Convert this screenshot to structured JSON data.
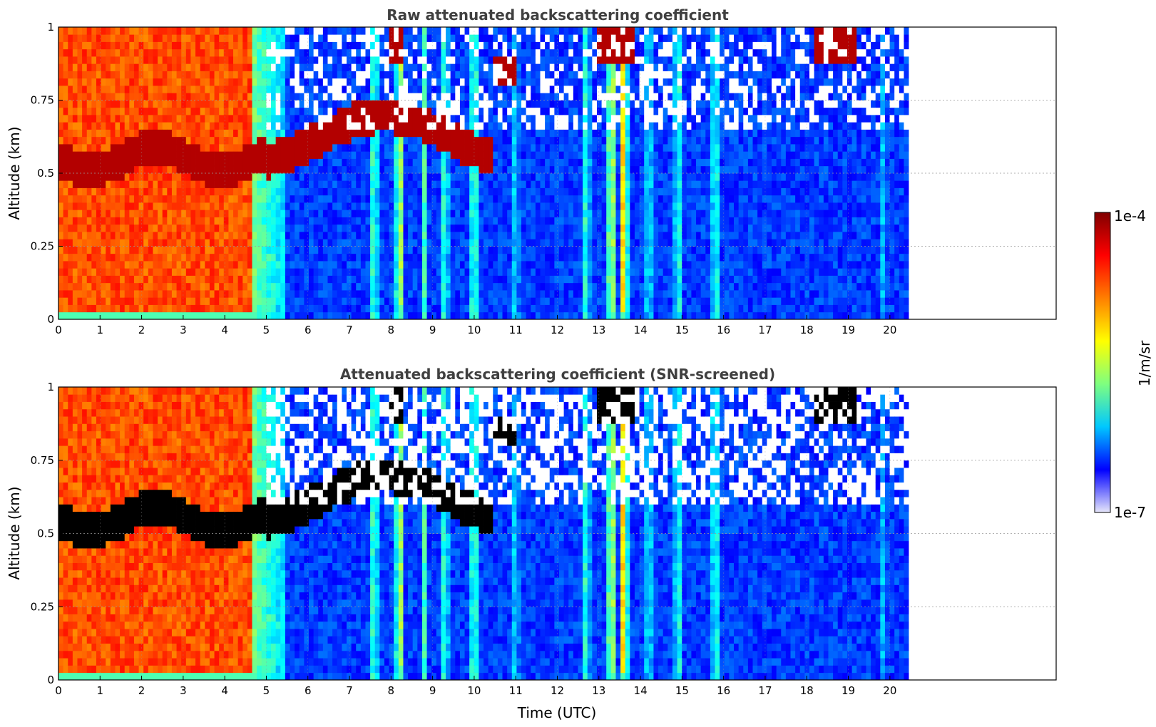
{
  "chart_data": [
    {
      "type": "heatmap",
      "title": "Raw attenuated backscattering coefficient",
      "xlabel": "",
      "ylabel": "Altitude (km)",
      "xlim": [
        0,
        24
      ],
      "ylim": [
        0,
        1
      ],
      "data_time_range": [
        0,
        20.45
      ],
      "xticks": [
        0,
        1,
        2,
        3,
        4,
        5,
        6,
        7,
        8,
        9,
        10,
        11,
        12,
        13,
        14,
        15,
        16,
        17,
        18,
        19,
        20
      ],
      "yticks": [
        0,
        0.25,
        0.5,
        0.75,
        1
      ],
      "ytick_labels": [
        "0",
        "0.25",
        "0.5",
        "0.75",
        "1"
      ],
      "grid": true,
      "screened": false
    },
    {
      "type": "heatmap",
      "title": "Attenuated backscattering coefficient (SNR-screened)",
      "xlabel": "Time (UTC)",
      "ylabel": "Altitude (km)",
      "xlim": [
        0,
        24
      ],
      "ylim": [
        0,
        1
      ],
      "data_time_range": [
        0,
        20.45
      ],
      "xticks": [
        0,
        1,
        2,
        3,
        4,
        5,
        6,
        7,
        8,
        9,
        10,
        11,
        12,
        13,
        14,
        15,
        16,
        17,
        18,
        19,
        20
      ],
      "yticks": [
        0,
        0.25,
        0.5,
        0.75,
        1
      ],
      "ytick_labels": [
        "0",
        "0.25",
        "0.5",
        "0.75",
        "1"
      ],
      "grid": true,
      "screened": true
    }
  ],
  "colorbar": {
    "label": "1/m/sr",
    "max_label": "1e-4",
    "min_label": "1e-7",
    "scale": "log",
    "colormap": "jet",
    "colors": [
      "#e6e6fa",
      "#0000ff",
      "#00c8ff",
      "#7fff7f",
      "#ffff00",
      "#ff7f00",
      "#ff0000",
      "#800000"
    ]
  }
}
